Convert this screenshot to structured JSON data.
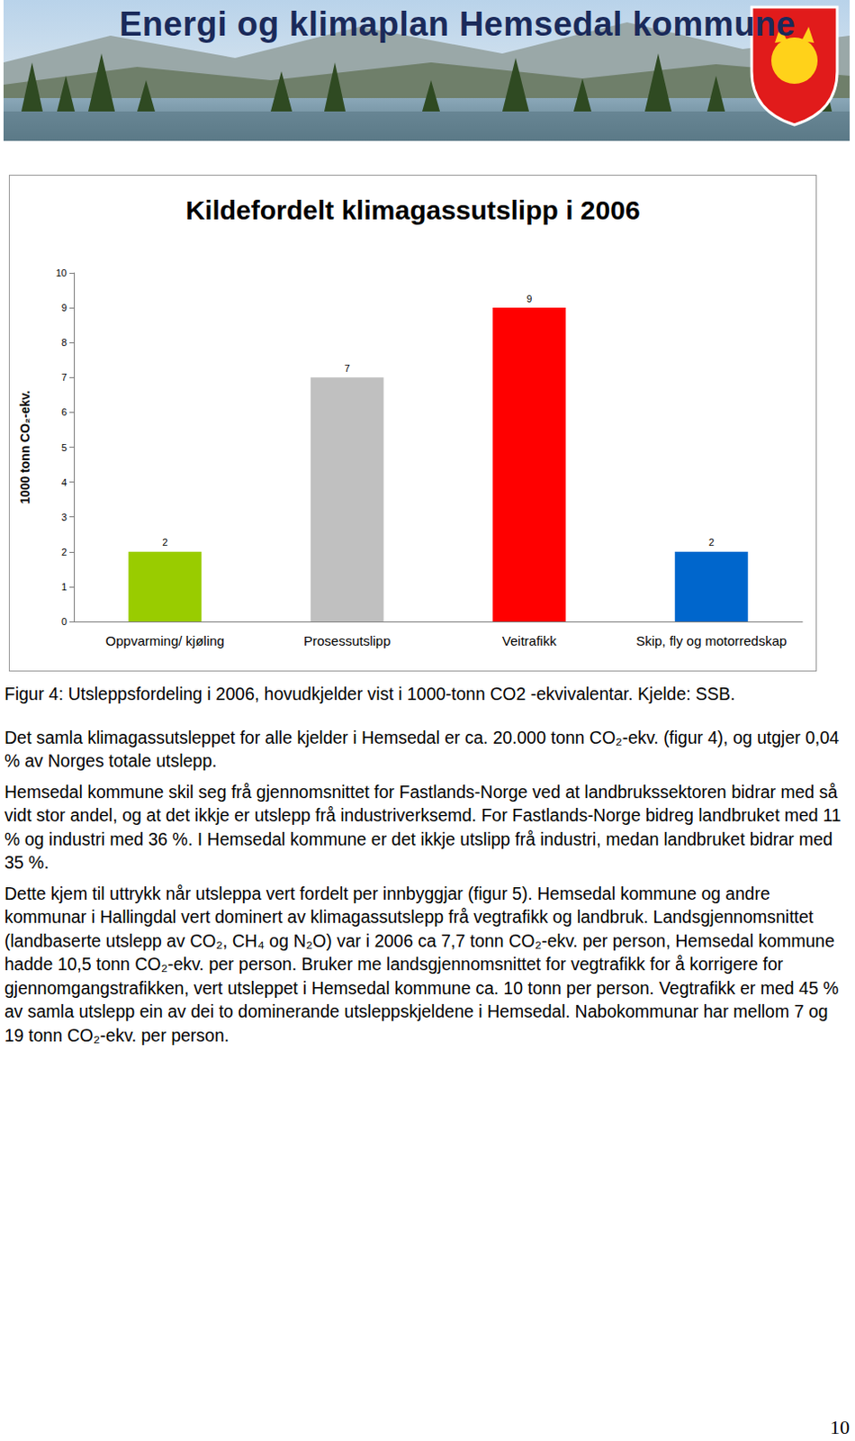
{
  "header": {
    "title": "Energi og klimaplan Hemsedal kommune"
  },
  "chart_data": {
    "type": "bar",
    "title": "Kildefordelt klimagassutslipp i 2006",
    "y_label": "1000 tonn CO₂-ekv.",
    "categories": [
      "Oppvarming/ kjøling",
      "Prosessutslipp",
      "Veitrafikk",
      "Skip, fly og motorredskap"
    ],
    "values": [
      2,
      7,
      9,
      2
    ],
    "colors": [
      "#99cc00",
      "#c0c0c0",
      "#ff0000",
      "#0066cc"
    ],
    "ylim": [
      0,
      10
    ],
    "yticks": [
      0,
      1,
      2,
      3,
      4,
      5,
      6,
      7,
      8,
      9,
      10
    ],
    "grid": false,
    "data_labels": true
  },
  "caption": "Figur 4: Utsleppsfordeling i 2006, hovudkjelder vist i 1000-tonn CO2 -ekvivalentar. Kjelde: SSB.",
  "paragraphs": [
    "Det samla klimagassutsleppet for alle kjelder i Hemsedal er ca. 20.000 tonn CO₂-ekv. (figur 4), og utgjer 0,04 % av Norges totale utslepp.",
    "Hemsedal kommune skil seg frå gjennomsnittet for Fastlands-Norge ved at landbrukssektoren bidrar med så vidt stor andel, og at det ikkje er utslepp frå industriverksemd. For Fastlands-Norge bidreg landbruket med 11 % og industri med 36 %. I Hemsedal kommune er det ikkje utslipp frå industri, medan landbruket bidrar med 35 %.",
    "Dette kjem til uttrykk når utsleppa vert fordelt per innbyggjar (figur 5). Hemsedal kommune og andre kommunar i Hallingdal vert dominert av klimagassutslepp frå vegtrafikk og landbruk. Landsgjennomsnittet (landbaserte utslepp av CO₂, CH₄ og N₂O) var i 2006 ca 7,7 tonn CO₂-ekv. per person, Hemsedal kommune hadde 10,5 tonn CO₂-ekv. per person. Bruker me landsgjennomsnittet for vegtrafikk for å korrigere for gjennomgangstrafikken, vert utsleppet i Hemsedal kommune ca. 10 tonn per person. Vegtrafikk er med 45 % av samla utslepp ein av dei to dominerande utsleppskjeldene i Hemsedal. Nabokommunar har mellom 7 og 19 tonn CO₂-ekv. per person."
  ],
  "page_number": "10"
}
